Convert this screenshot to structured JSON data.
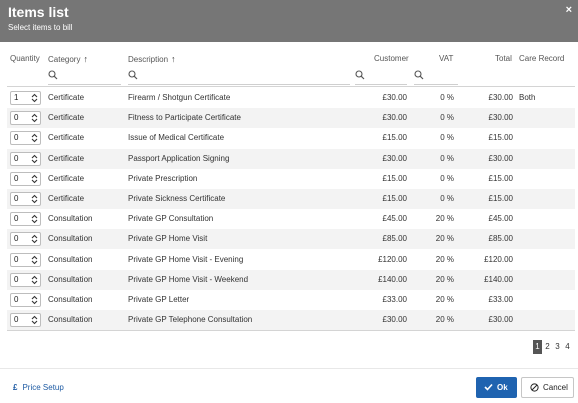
{
  "dialog": {
    "title": "Items list",
    "subtitle": "Select items to bill",
    "close_label": "×"
  },
  "columns": {
    "quantity": "Quantity",
    "category": "Category",
    "category_sort": "↑",
    "description": "Description",
    "description_sort": "↑",
    "customer": "Customer",
    "vat": "VAT",
    "total": "Total",
    "care_record": "Care Record"
  },
  "rows": [
    {
      "qty": "1",
      "category": "Certificate",
      "description": "Firearm / Shotgun Certificate",
      "customer": "£30.00",
      "vat": "0 %",
      "total": "£30.00",
      "care": "Both"
    },
    {
      "qty": "0",
      "category": "Certificate",
      "description": "Fitness to Participate Certificate",
      "customer": "£30.00",
      "vat": "0 %",
      "total": "£30.00",
      "care": ""
    },
    {
      "qty": "0",
      "category": "Certificate",
      "description": "Issue of Medical Certificate",
      "customer": "£15.00",
      "vat": "0 %",
      "total": "£15.00",
      "care": ""
    },
    {
      "qty": "0",
      "category": "Certificate",
      "description": "Passport Application Signing",
      "customer": "£30.00",
      "vat": "0 %",
      "total": "£30.00",
      "care": ""
    },
    {
      "qty": "0",
      "category": "Certificate",
      "description": "Private Prescription",
      "customer": "£15.00",
      "vat": "0 %",
      "total": "£15.00",
      "care": ""
    },
    {
      "qty": "0",
      "category": "Certificate",
      "description": "Private Sickness Certificate",
      "customer": "£15.00",
      "vat": "0 %",
      "total": "£15.00",
      "care": ""
    },
    {
      "qty": "0",
      "category": "Consultation",
      "description": "Private GP Consultation",
      "customer": "£45.00",
      "vat": "20 %",
      "total": "£45.00",
      "care": ""
    },
    {
      "qty": "0",
      "category": "Consultation",
      "description": "Private GP Home Visit",
      "customer": "£85.00",
      "vat": "20 %",
      "total": "£85.00",
      "care": ""
    },
    {
      "qty": "0",
      "category": "Consultation",
      "description": "Private GP Home Visit - Evening",
      "customer": "£120.00",
      "vat": "20 %",
      "total": "£120.00",
      "care": ""
    },
    {
      "qty": "0",
      "category": "Consultation",
      "description": "Private GP Home Visit - Weekend",
      "customer": "£140.00",
      "vat": "20 %",
      "total": "£140.00",
      "care": ""
    },
    {
      "qty": "0",
      "category": "Consultation",
      "description": "Private GP Letter",
      "customer": "£33.00",
      "vat": "20 %",
      "total": "£33.00",
      "care": ""
    },
    {
      "qty": "0",
      "category": "Consultation",
      "description": "Private GP Telephone Consultation",
      "customer": "£30.00",
      "vat": "20 %",
      "total": "£30.00",
      "care": ""
    }
  ],
  "pagination": {
    "pages": [
      "1",
      "2",
      "3",
      "4"
    ],
    "current": "1"
  },
  "footer": {
    "price_setup_icon": "£",
    "price_setup_label": "Price Setup",
    "ok_label": "Ok",
    "cancel_label": "Cancel"
  },
  "colors": {
    "header_bg": "#767676",
    "primary": "#1f63b0",
    "link": "#1d5aa3"
  }
}
